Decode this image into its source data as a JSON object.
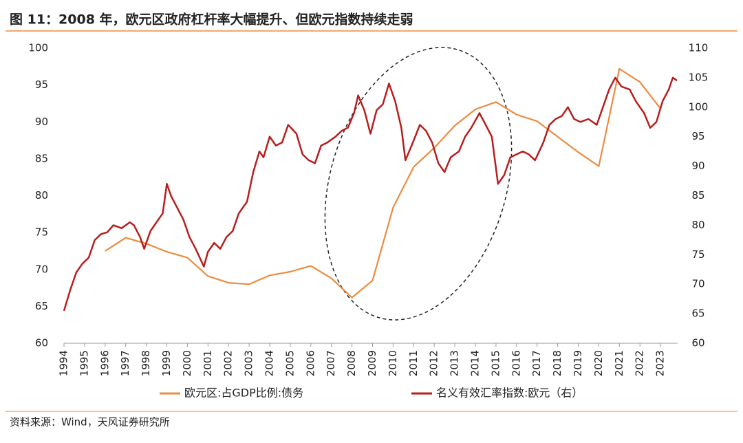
{
  "chart_data": {
    "type": "line",
    "title": "图 11：2008 年，欧元区政府杠杆率大幅提升、但欧元指数持续走弱",
    "source": "资料来源：Wind，天风证券研究所",
    "xlim": [
      1994,
      2024
    ],
    "xticks": [
      1994,
      1995,
      1996,
      1997,
      1998,
      1999,
      2000,
      2001,
      2002,
      2003,
      2004,
      2005,
      2006,
      2007,
      2008,
      2009,
      2010,
      2011,
      2012,
      2013,
      2014,
      2015,
      2016,
      2017,
      2018,
      2019,
      2020,
      2021,
      2022,
      2023
    ],
    "ylim": [
      60,
      100
    ],
    "yticks": [
      60,
      65,
      70,
      75,
      80,
      85,
      90,
      95,
      100
    ],
    "y2lim": [
      60,
      110
    ],
    "y2ticks": [
      60,
      65,
      70,
      75,
      80,
      85,
      90,
      95,
      100,
      105,
      110
    ],
    "legend": "bottom",
    "series": [
      {
        "name": "欧元区:占GDP比例:债务",
        "color": "#ed8b3e",
        "axis": "y",
        "x": [
          1996,
          1997,
          1998,
          1999,
          2000,
          2001,
          2002,
          2003,
          2004,
          2005,
          2006,
          2007,
          2008,
          2009,
          2010,
          2011,
          2012,
          2013,
          2014,
          2015,
          2016,
          2017,
          2018,
          2019,
          2020,
          2021,
          2022,
          2023
        ],
        "values": [
          72.5,
          74.3,
          73.5,
          72.4,
          71.6,
          69.1,
          68.2,
          68.0,
          69.2,
          69.7,
          70.5,
          68.8,
          66.2,
          68.5,
          78.4,
          83.9,
          86.5,
          89.5,
          91.7,
          92.7,
          91.0,
          90.1,
          88.0,
          85.9,
          84.0,
          97.2,
          95.4,
          91.8
        ]
      },
      {
        "name": "名义有效汇率指数:欧元（右）",
        "color": "#b81d1d",
        "axis": "y2",
        "x": [
          1994.0,
          1994.3,
          1994.6,
          1994.9,
          1995.2,
          1995.5,
          1995.8,
          1996.1,
          1996.4,
          1996.8,
          1997.2,
          1997.4,
          1997.7,
          1997.9,
          1998.2,
          1998.5,
          1998.8,
          1999.0,
          1999.2,
          1999.5,
          1999.8,
          2000.1,
          2000.4,
          2000.8,
          2001.0,
          2001.3,
          2001.6,
          2001.9,
          2002.2,
          2002.5,
          2002.9,
          2003.2,
          2003.5,
          2003.7,
          2004.0,
          2004.3,
          2004.6,
          2004.9,
          2005.3,
          2005.6,
          2005.9,
          2006.2,
          2006.5,
          2006.8,
          2007.2,
          2007.5,
          2007.8,
          2008.1,
          2008.3,
          2008.6,
          2008.9,
          2009.2,
          2009.5,
          2009.8,
          2010.1,
          2010.4,
          2010.6,
          2010.9,
          2011.3,
          2011.6,
          2011.9,
          2012.2,
          2012.5,
          2012.8,
          2013.2,
          2013.5,
          2013.8,
          2014.2,
          2014.5,
          2014.8,
          2015.1,
          2015.4,
          2015.7,
          2016.0,
          2016.3,
          2016.6,
          2016.9,
          2017.3,
          2017.6,
          2017.9,
          2018.2,
          2018.5,
          2018.8,
          2019.1,
          2019.5,
          2019.9,
          2020.2,
          2020.5,
          2020.8,
          2021.1,
          2021.5,
          2021.8,
          2022.2,
          2022.5,
          2022.8,
          2023.1,
          2023.4,
          2023.6,
          2023.8
        ],
        "values": [
          65.5,
          69,
          72,
          73.5,
          74.5,
          77.5,
          78.5,
          78.8,
          80,
          79.5,
          80.5,
          80,
          78,
          76,
          79,
          80.5,
          82,
          87,
          85,
          83,
          81,
          78,
          76,
          73,
          75.5,
          77,
          76,
          78,
          79,
          82,
          84,
          89,
          92.5,
          91.5,
          95,
          93.5,
          94,
          97,
          95.5,
          92,
          91,
          90.5,
          93.5,
          94,
          95,
          96,
          96.5,
          99,
          102,
          99.5,
          95.5,
          99.5,
          100.5,
          104,
          101,
          96.5,
          91,
          93.5,
          97,
          96,
          94,
          90.5,
          89,
          91.5,
          92.5,
          95,
          96.5,
          99,
          97,
          95,
          87,
          88.5,
          91.5,
          92,
          92.5,
          92,
          91,
          94,
          97,
          98,
          98.5,
          100,
          98,
          97.5,
          98,
          97,
          100,
          103,
          105,
          103.5,
          103,
          101,
          99,
          96.5,
          97.5,
          101,
          103,
          105,
          104.5
        ]
      }
    ]
  }
}
